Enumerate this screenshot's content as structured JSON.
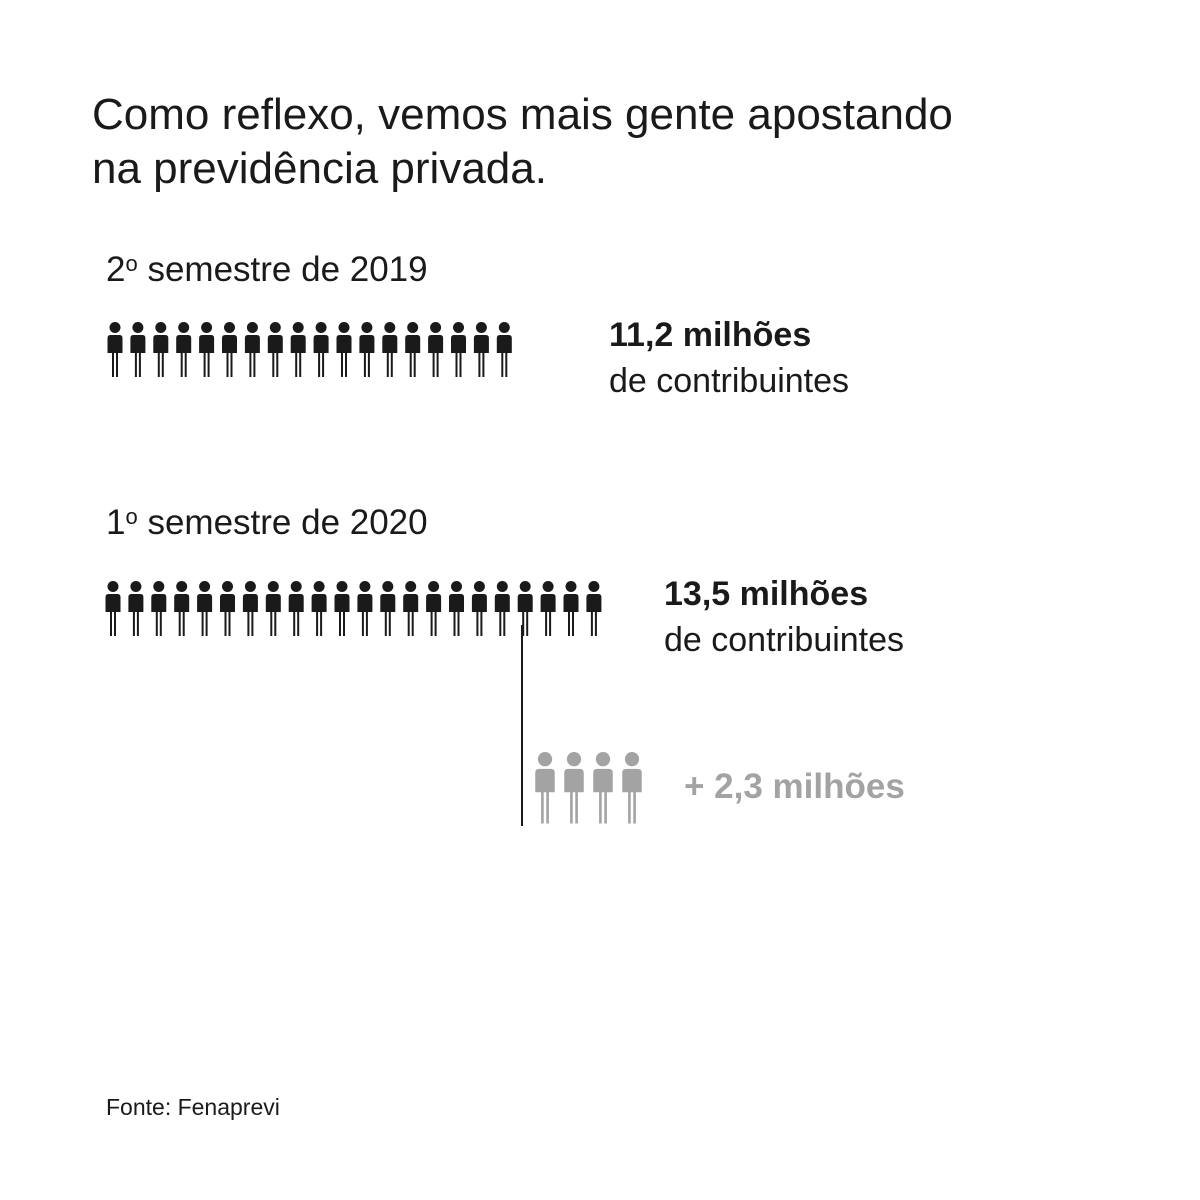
{
  "headline": {
    "line1": "Como reflexo, vemos mais gente apostando",
    "line2": "na previdência privada."
  },
  "chart_data": {
    "type": "pictogram",
    "colors": {
      "base": "#1a1a1a",
      "increase": "#a3a3a3"
    },
    "series": [
      {
        "label_num": "2",
        "label_ord": "o",
        "label_text": " semestre de 2019",
        "icons": 18,
        "value_text": "11,2 milhões",
        "unit_text": "de contribuintes",
        "value": 11.2
      },
      {
        "label_num": "1",
        "label_ord": "o",
        "label_text": " semestre de 2020",
        "icons": 22,
        "value_text": "13,5 milhões",
        "unit_text": "de contribuintes",
        "value": 13.5
      }
    ],
    "increase": {
      "icons": 4,
      "value_text": "+ 2,3 milhões",
      "value": 2.3
    }
  },
  "source": "Fonte: Fenaprevi"
}
